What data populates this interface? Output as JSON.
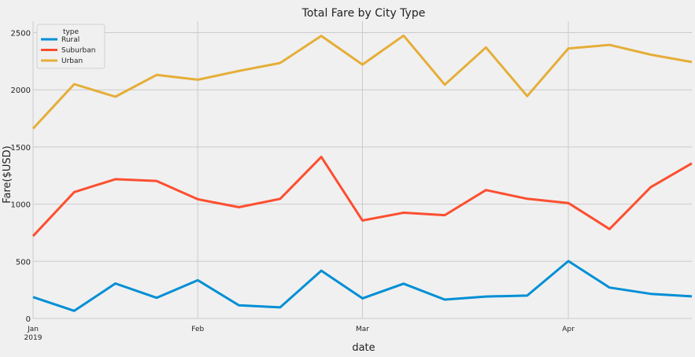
{
  "chart_data": {
    "type": "line",
    "title": "Total Fare by City Type",
    "xlabel": "date",
    "ylabel": "Fare($USD)",
    "ylim": [
      0,
      2600
    ],
    "yticks": [
      0,
      500,
      1000,
      1500,
      2000,
      2500
    ],
    "x_ticks": [
      {
        "index": 0,
        "label": "Jan",
        "sublabel": "2019"
      },
      {
        "index": 4,
        "label": "Feb",
        "sublabel": ""
      },
      {
        "index": 8,
        "label": "Mar",
        "sublabel": ""
      },
      {
        "index": 13,
        "label": "Apr",
        "sublabel": ""
      }
    ],
    "x": [
      "2019-01-06",
      "2019-01-13",
      "2019-01-20",
      "2019-01-27",
      "2019-02-03",
      "2019-02-10",
      "2019-02-17",
      "2019-02-24",
      "2019-03-03",
      "2019-03-10",
      "2019-03-17",
      "2019-03-24",
      "2019-03-31",
      "2019-04-07",
      "2019-04-14",
      "2019-04-21",
      "2019-04-28"
    ],
    "legend": {
      "title": "type",
      "position": "top-left"
    },
    "grid": true,
    "series": [
      {
        "name": "Rural",
        "color": "#008fd5",
        "values": [
          187,
          67,
          306,
          181,
          334,
          115,
          97,
          418,
          176,
          304,
          165,
          192,
          200,
          502,
          270,
          215,
          193
        ]
      },
      {
        "name": "Suburban",
        "color": "#fc4f30",
        "values": [
          721,
          1105,
          1218,
          1203,
          1043,
          973,
          1046,
          1413,
          857,
          925,
          904,
          1123,
          1047,
          1010,
          782,
          1148,
          1357
        ]
      },
      {
        "name": "Urban",
        "color": "#e5ae38",
        "values": [
          1661,
          2050,
          1940,
          2130,
          2088,
          2165,
          2235,
          2472,
          2221,
          2474,
          2045,
          2371,
          1945,
          2362,
          2393,
          2308,
          2243
        ]
      }
    ]
  }
}
